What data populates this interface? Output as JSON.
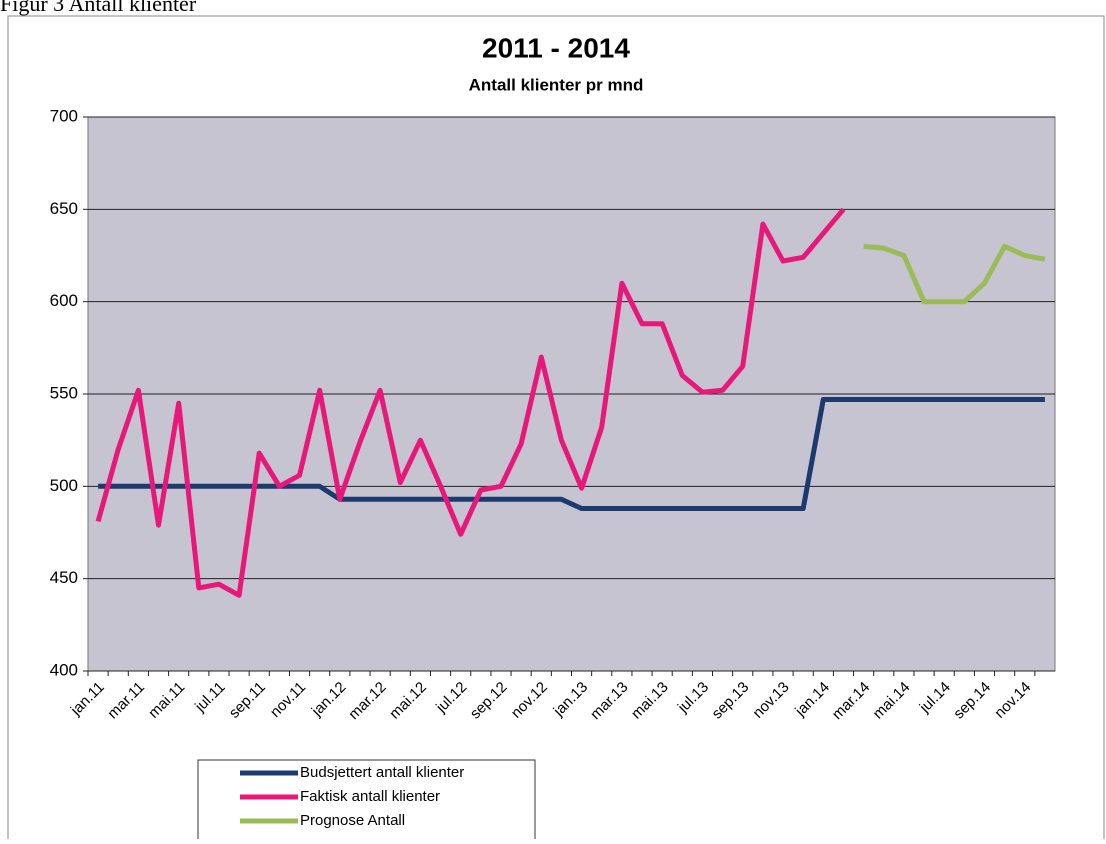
{
  "caption": "Figur 3 Antall klienter",
  "chart_data": {
    "type": "line",
    "title": "2011 - 2014",
    "subtitle": "Antall klienter pr mnd",
    "categories": [
      "jan.11",
      null,
      "mar.11",
      null,
      "mai.11",
      null,
      "jul.11",
      null,
      "sep.11",
      null,
      "nov.11",
      null,
      "jan.12",
      null,
      "mar.12",
      null,
      "mai.12",
      null,
      "jul.12",
      null,
      "sep.12",
      null,
      "nov.12",
      null,
      "jan.13",
      null,
      "mar.13",
      null,
      "mai.13",
      null,
      "jul.13",
      null,
      "sep.13",
      null,
      "nov.13",
      null,
      "jan.14",
      null,
      "mar.14",
      null,
      "mai.14",
      null,
      "jul.14",
      null,
      "sep.14",
      null,
      "nov.14",
      null
    ],
    "series": [
      {
        "name": "Budsjettert antall klienter",
        "color": "#1c3a6e",
        "values": [
          500,
          500,
          500,
          500,
          500,
          500,
          500,
          500,
          500,
          500,
          500,
          500,
          493,
          493,
          493,
          493,
          493,
          493,
          493,
          493,
          493,
          493,
          493,
          493,
          488,
          488,
          488,
          488,
          488,
          488,
          488,
          488,
          488,
          488,
          488,
          488,
          547,
          547,
          547,
          547,
          547,
          547,
          547,
          547,
          547,
          547,
          547,
          547
        ]
      },
      {
        "name": "Faktisk antall klienter",
        "color": "#e6197a",
        "values": [
          481,
          520,
          552,
          479,
          545,
          445,
          447,
          441,
          518,
          500,
          506,
          552,
          493,
          524,
          552,
          502,
          525,
          500,
          474,
          498,
          500,
          523,
          570,
          525,
          499,
          532,
          610,
          588,
          588,
          560,
          551,
          552,
          565,
          642,
          622,
          624,
          637,
          650,
          null,
          null,
          null,
          null,
          null,
          null,
          null,
          null,
          null,
          null
        ]
      },
      {
        "name": "Prognose Antall",
        "color": "#9bbb59",
        "values": [
          null,
          null,
          null,
          null,
          null,
          null,
          null,
          null,
          null,
          null,
          null,
          null,
          null,
          null,
          null,
          null,
          null,
          null,
          null,
          null,
          null,
          null,
          null,
          null,
          null,
          null,
          null,
          null,
          null,
          null,
          null,
          null,
          null,
          null,
          null,
          null,
          null,
          null,
          630,
          629,
          625,
          600,
          600,
          600,
          610,
          630,
          625,
          623
        ]
      }
    ],
    "ylim": [
      400,
      700
    ],
    "yticks": [
      400,
      450,
      500,
      550,
      600,
      650,
      700
    ],
    "grid": true
  }
}
